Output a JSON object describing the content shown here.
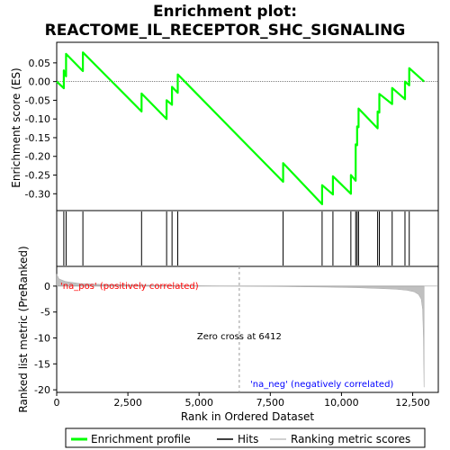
{
  "chart_data": {
    "type": "line",
    "title_line1": "Enrichment plot:",
    "title_line2": "REACTOME_IL_RECEPTOR_SHC_SIGNALING",
    "colors": {
      "enrichment": "#00ff00",
      "hits": "#000000",
      "metric": "#c0c0c0",
      "pos_label": "#ff0000",
      "neg_label": "#0000ff"
    },
    "es_panel": {
      "ylabel": "Enrichment score (ES)",
      "ylim": [
        -0.345,
        0.105
      ],
      "yticks": [
        0.05,
        0.0,
        -0.05,
        -0.1,
        -0.15,
        -0.2,
        -0.25,
        -0.3
      ],
      "ytick_labels": [
        "0.05",
        "0.00",
        "-0.05",
        "-0.10",
        "-0.15",
        "-0.20",
        "-0.25",
        "-0.30"
      ]
    },
    "x_range": [
      0,
      13400
    ],
    "xticks": [
      0,
      2500,
      5000,
      7500,
      10000,
      12500
    ],
    "xtick_labels": [
      "0",
      "2,500",
      "5,000",
      "7,500",
      "10,000",
      "12,500"
    ],
    "xlabel": "Rank in Ordered Dataset",
    "es_points": [
      [
        0,
        0.0
      ],
      [
        250,
        -0.018
      ],
      [
        250,
        0.03
      ],
      [
        330,
        0.014
      ],
      [
        330,
        0.074
      ],
      [
        920,
        0.028
      ],
      [
        920,
        0.078
      ],
      [
        2980,
        -0.08
      ],
      [
        2980,
        -0.032
      ],
      [
        3860,
        -0.1
      ],
      [
        3860,
        -0.05
      ],
      [
        4050,
        -0.062
      ],
      [
        4050,
        -0.014
      ],
      [
        4250,
        -0.03
      ],
      [
        4250,
        0.019
      ],
      [
        7950,
        -0.268
      ],
      [
        7950,
        -0.218
      ],
      [
        9320,
        -0.328
      ],
      [
        9320,
        -0.277
      ],
      [
        9700,
        -0.302
      ],
      [
        9700,
        -0.253
      ],
      [
        10330,
        -0.3
      ],
      [
        10330,
        -0.25
      ],
      [
        10500,
        -0.265
      ],
      [
        10500,
        -0.168
      ],
      [
        10550,
        -0.17
      ],
      [
        10550,
        -0.12
      ],
      [
        10600,
        -0.122
      ],
      [
        10600,
        -0.072
      ],
      [
        11270,
        -0.125
      ],
      [
        11270,
        -0.08
      ],
      [
        11330,
        -0.083
      ],
      [
        11330,
        -0.033
      ],
      [
        11780,
        -0.06
      ],
      [
        11780,
        -0.017
      ],
      [
        12230,
        -0.047
      ],
      [
        12230,
        0.0
      ],
      [
        12380,
        -0.01
      ],
      [
        12380,
        0.036
      ],
      [
        12900,
        0.0
      ]
    ],
    "hits": [
      250,
      330,
      920,
      2980,
      3860,
      4050,
      4250,
      7950,
      9320,
      9700,
      10330,
      10500,
      10550,
      10600,
      11270,
      11330,
      11780,
      12230,
      12380
    ],
    "metric_panel": {
      "ylabel": "Ranked list metric (PreRanked)",
      "ylim": [
        -20.5,
        3.8
      ],
      "yticks": [
        0,
        -5,
        -10,
        -15,
        -20
      ],
      "ytick_labels": [
        "0",
        "-5",
        "-10",
        "-15",
        "-20"
      ],
      "curve": [
        [
          0,
          2.3
        ],
        [
          80,
          1.4
        ],
        [
          300,
          0.9
        ],
        [
          800,
          0.5
        ],
        [
          1500,
          0.35
        ],
        [
          2500,
          0.25
        ],
        [
          3500,
          0.15
        ],
        [
          4500,
          0.08
        ],
        [
          5500,
          0.03
        ],
        [
          6412,
          0.0
        ],
        [
          7500,
          -0.05
        ],
        [
          8500,
          -0.12
        ],
        [
          9500,
          -0.2
        ],
        [
          10500,
          -0.3
        ],
        [
          11300,
          -0.45
        ],
        [
          11900,
          -0.6
        ],
        [
          12300,
          -0.8
        ],
        [
          12550,
          -1.1
        ],
        [
          12700,
          -1.6
        ],
        [
          12800,
          -2.5
        ],
        [
          12850,
          -4.5
        ],
        [
          12880,
          -10
        ],
        [
          12900,
          -19.5
        ]
      ],
      "zero_cross_label": "Zero cross at 6412",
      "zero_cross_rank": 6412,
      "pos_label": "'na_pos' (positively correlated)",
      "neg_label": "'na_neg' (negatively correlated)"
    },
    "heat_bar": {
      "segments": [
        {
          "from": 0,
          "to": 2100,
          "color": "#e8263a"
        },
        {
          "from": 2100,
          "to": 3100,
          "color": "#f0606e"
        },
        {
          "from": 3100,
          "to": 4600,
          "color": "#f8909a"
        },
        {
          "from": 4600,
          "to": 6412,
          "color": "#fbc6ee"
        },
        {
          "from": 6412,
          "to": 8400,
          "color": "#d8d6f8"
        },
        {
          "from": 8400,
          "to": 9800,
          "color": "#b4b2f0"
        },
        {
          "from": 9800,
          "to": 10600,
          "color": "#8e8ce8"
        },
        {
          "from": 10600,
          "to": 12600,
          "color": "#5e5cdc"
        },
        {
          "from": 12600,
          "to": 12900,
          "color": "#2020b8"
        }
      ]
    },
    "legend": {
      "enrichment_label": "Enrichment profile",
      "hits_label": "Hits",
      "metric_label": "Ranking metric scores"
    }
  }
}
